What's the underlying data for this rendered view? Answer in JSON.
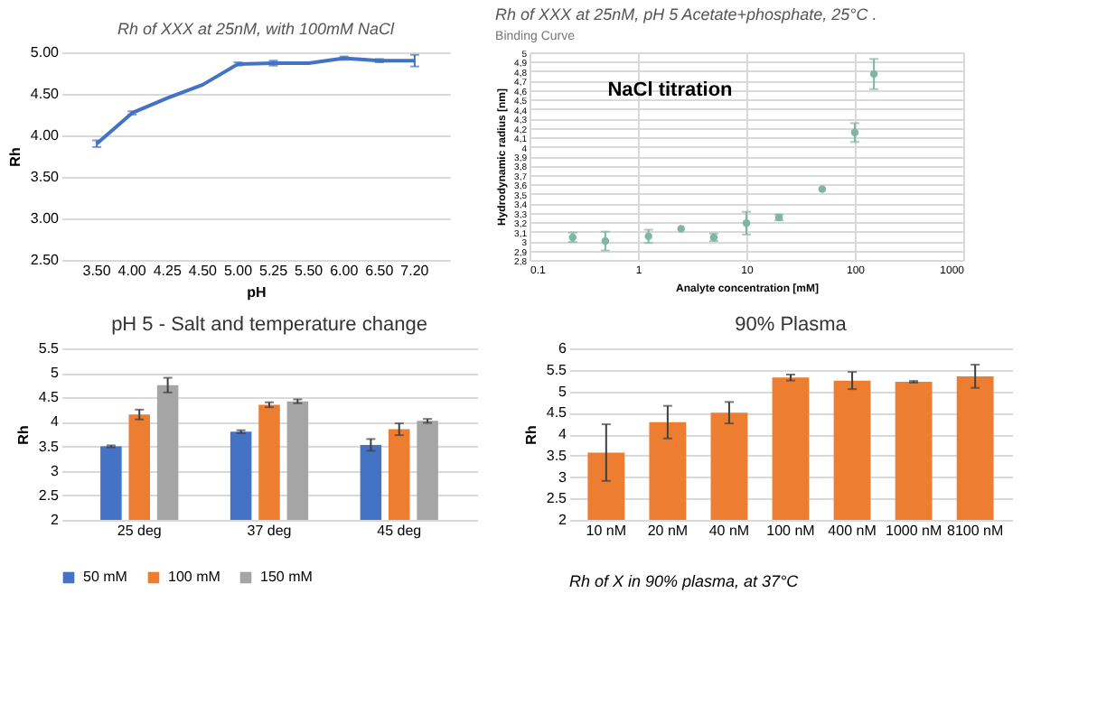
{
  "chart_data": [
    {
      "type": "line",
      "title": "Rh of XXX at 25nM, with 100mM NaCl",
      "xlabel": "pH",
      "ylabel": "Rh",
      "categories": [
        "3.50",
        "4.00",
        "4.25",
        "4.50",
        "5.00",
        "5.25",
        "5.50",
        "6.00",
        "6.50",
        "7.20"
      ],
      "series": [
        {
          "color": "#4472c4",
          "values": [
            3.9,
            4.27,
            4.45,
            4.61,
            4.86,
            4.87,
            4.87,
            4.93,
            4.9,
            4.9
          ],
          "errors": [
            0.04,
            0.02,
            null,
            null,
            0.02,
            0.03,
            null,
            0.02,
            0.02,
            0.07
          ]
        }
      ],
      "ylim": [
        2.5,
        5.0
      ],
      "yticks": [
        {
          "value": 2.5,
          "label": "2.50"
        },
        {
          "value": 3,
          "label": "3.00"
        },
        {
          "value": 3.5,
          "label": "3.50"
        },
        {
          "value": 4,
          "label": "4.00"
        },
        {
          "value": 4.5,
          "label": "4.50"
        },
        {
          "value": 5,
          "label": "5.00"
        }
      ],
      "grid": "y",
      "marker": "none",
      "line_style": "solid"
    },
    {
      "type": "scatter",
      "title": "Rh of XXX at 25nM, pH 5 Acetate+phosphate,  25°C .",
      "subtitle": "Binding Curve",
      "xlabel": "Analyte concentration [mM]",
      "ylabel": "Hydrodynamic radius [nm]",
      "annotations": [
        "NaCl titration"
      ],
      "x": [
        0.25,
        0.5,
        1.25,
        2.5,
        5,
        10,
        20,
        50,
        100,
        150
      ],
      "series": [
        {
          "color": "#7fb5a3",
          "values": [
            3.04,
            3.0,
            3.05,
            3.13,
            3.04,
            3.19,
            3.25,
            3.55,
            4.15,
            4.77
          ],
          "errors": [
            0.05,
            0.1,
            0.07,
            null,
            0.04,
            0.12,
            0.03,
            null,
            0.1,
            0.16
          ]
        }
      ],
      "log": "x",
      "xlim": [
        0.1,
        1000
      ],
      "xticks": [
        0.1,
        1,
        10,
        100,
        1000
      ],
      "ylim": [
        2.8,
        5
      ],
      "yticks": [
        {
          "value": 2.8,
          "label": "2,8"
        },
        {
          "value": 2.9,
          "label": "2,9"
        },
        3,
        {
          "value": 3.1,
          "label": "3,1"
        },
        {
          "value": 3.2,
          "label": "3,2"
        },
        {
          "value": 3.3,
          "label": "3,3"
        },
        {
          "value": 3.4,
          "label": "3,4"
        },
        {
          "value": 3.5,
          "label": "3,5"
        },
        {
          "value": 3.6,
          "label": "3,6"
        },
        {
          "value": 3.7,
          "label": "3,7"
        },
        {
          "value": 3.8,
          "label": "3,8"
        },
        {
          "value": 3.9,
          "label": "3,9"
        },
        4,
        {
          "value": 4.1,
          "label": "4,1"
        },
        {
          "value": 4.2,
          "label": "4,2"
        },
        {
          "value": 4.3,
          "label": "4,3"
        },
        {
          "value": 4.4,
          "label": "4,4"
        },
        {
          "value": 4.5,
          "label": "4,5"
        },
        {
          "value": 4.6,
          "label": "4,6"
        },
        {
          "value": 4.7,
          "label": "4,7"
        },
        {
          "value": 4.8,
          "label": "4,8"
        },
        {
          "value": 4.9,
          "label": "4,9"
        },
        5
      ],
      "grid": true,
      "marker": "circle"
    },
    {
      "type": "bar",
      "title": "pH 5 - Salt and temperature change",
      "ylabel": "Rh",
      "categories": [
        "25 deg",
        "37 deg",
        "45 deg"
      ],
      "series": [
        {
          "name": "50 mM",
          "color": "#4472c4",
          "values": [
            3.5,
            3.8,
            3.53
          ],
          "errors": [
            0.02,
            0.03,
            0.12
          ]
        },
        {
          "name": "100 mM",
          "color": "#ed7d31",
          "values": [
            4.15,
            4.35,
            3.85
          ],
          "errors": [
            0.1,
            0.05,
            0.12
          ]
        },
        {
          "name": "150 mM",
          "color": "#a5a5a5",
          "values": [
            4.75,
            4.42,
            4.02
          ],
          "errors": [
            0.15,
            0.04,
            0.04
          ]
        }
      ],
      "ylim": [
        2,
        5.5
      ],
      "yticks": [
        2,
        2.5,
        3,
        3.5,
        4,
        4.5,
        5,
        5.5
      ],
      "grid": "y",
      "legend": "bottom"
    },
    {
      "type": "bar",
      "title": "90% Plasma",
      "ylabel": "Rh",
      "annotations": [
        "Rh of X in 90% plasma, at 37°C"
      ],
      "categories": [
        "10 nM",
        "20 nM",
        "40 nM",
        "100 nM",
        "400 nM",
        "1000 nM",
        "8100 nM"
      ],
      "series": [
        {
          "color": "#ed7d31",
          "values": [
            3.57,
            4.28,
            4.5,
            5.32,
            5.25,
            5.22,
            5.35
          ],
          "errors": [
            0.66,
            0.38,
            0.25,
            0.07,
            0.2,
            0.02,
            0.27
          ]
        }
      ],
      "ylim": [
        2,
        6
      ],
      "yticks": [
        2,
        2.5,
        3,
        3.5,
        4,
        4.5,
        5,
        5.5,
        6
      ],
      "grid": "y"
    }
  ]
}
